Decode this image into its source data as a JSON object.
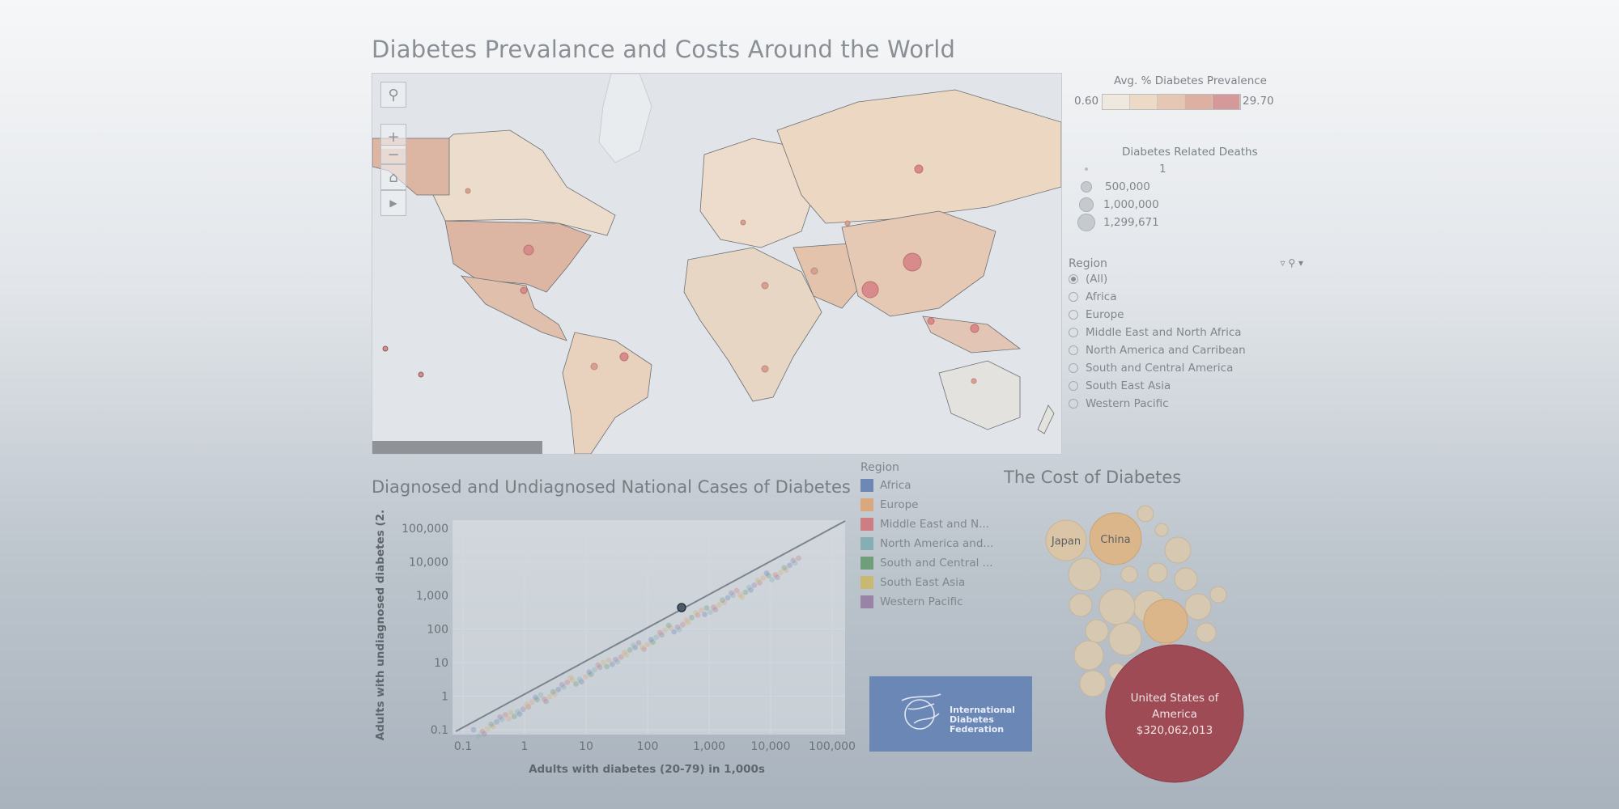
{
  "dashboard": {
    "title": "Diabetes Prevalance and Costs Around the World"
  },
  "prevalence_legend": {
    "title": "Avg. % Diabetes Prevalence",
    "min": "0.60",
    "max": "29.70",
    "colors": [
      "#efe8de",
      "#ecd9c6",
      "#e6c7b3",
      "#ddb0a2",
      "#d59999"
    ]
  },
  "deaths_legend": {
    "title": "Diabetes Related Deaths",
    "items": [
      {
        "label": "1"
      },
      {
        "label": "500,000"
      },
      {
        "label": "1,000,000"
      },
      {
        "label": "1,299,671"
      }
    ]
  },
  "region_filter": {
    "title": "Region",
    "selected": "(All)",
    "options": [
      "(All)",
      "Africa",
      "Europe",
      "Middle East and North Africa",
      "North America and Carribean",
      "South and Central America",
      "South East Asia",
      "Western Pacific"
    ]
  },
  "scatter": {
    "title": "Diagnosed and Undiagnosed National Cases of Diabetes",
    "x_label": "Adults with diabetes (20-79) in 1,000s",
    "y_label": "Adults with undiagnosed diabetes (2..",
    "x_ticks": [
      "0.1",
      "1",
      "10",
      "100",
      "1,000",
      "10,000",
      "100,000"
    ],
    "y_ticks": [
      "100,000",
      "10,000",
      "1,000",
      "100",
      "10",
      "1",
      "0.1"
    ]
  },
  "region_legend": {
    "title": "Region",
    "items": [
      {
        "label": "Africa",
        "color": "#6e88b6"
      },
      {
        "label": "Europe",
        "color": "#dba77e"
      },
      {
        "label": "Middle East and N...",
        "color": "#cc7e83"
      },
      {
        "label": "North America and...",
        "color": "#85aeb5"
      },
      {
        "label": "South and Central ...",
        "color": "#6f9f7a"
      },
      {
        "label": "South East Asia",
        "color": "#c9b872"
      },
      {
        "label": "Western Pacific",
        "color": "#9984a8"
      }
    ]
  },
  "cost": {
    "title": "The Cost of Diabetes",
    "bubbles": {
      "japan": "Japan",
      "china": "China",
      "usa_line1": "United States of",
      "usa_line2": "America",
      "usa_value": "$320,062,013"
    }
  },
  "logo": {
    "line1": "International",
    "line2": "Diabetes",
    "line3": "Federation"
  }
}
